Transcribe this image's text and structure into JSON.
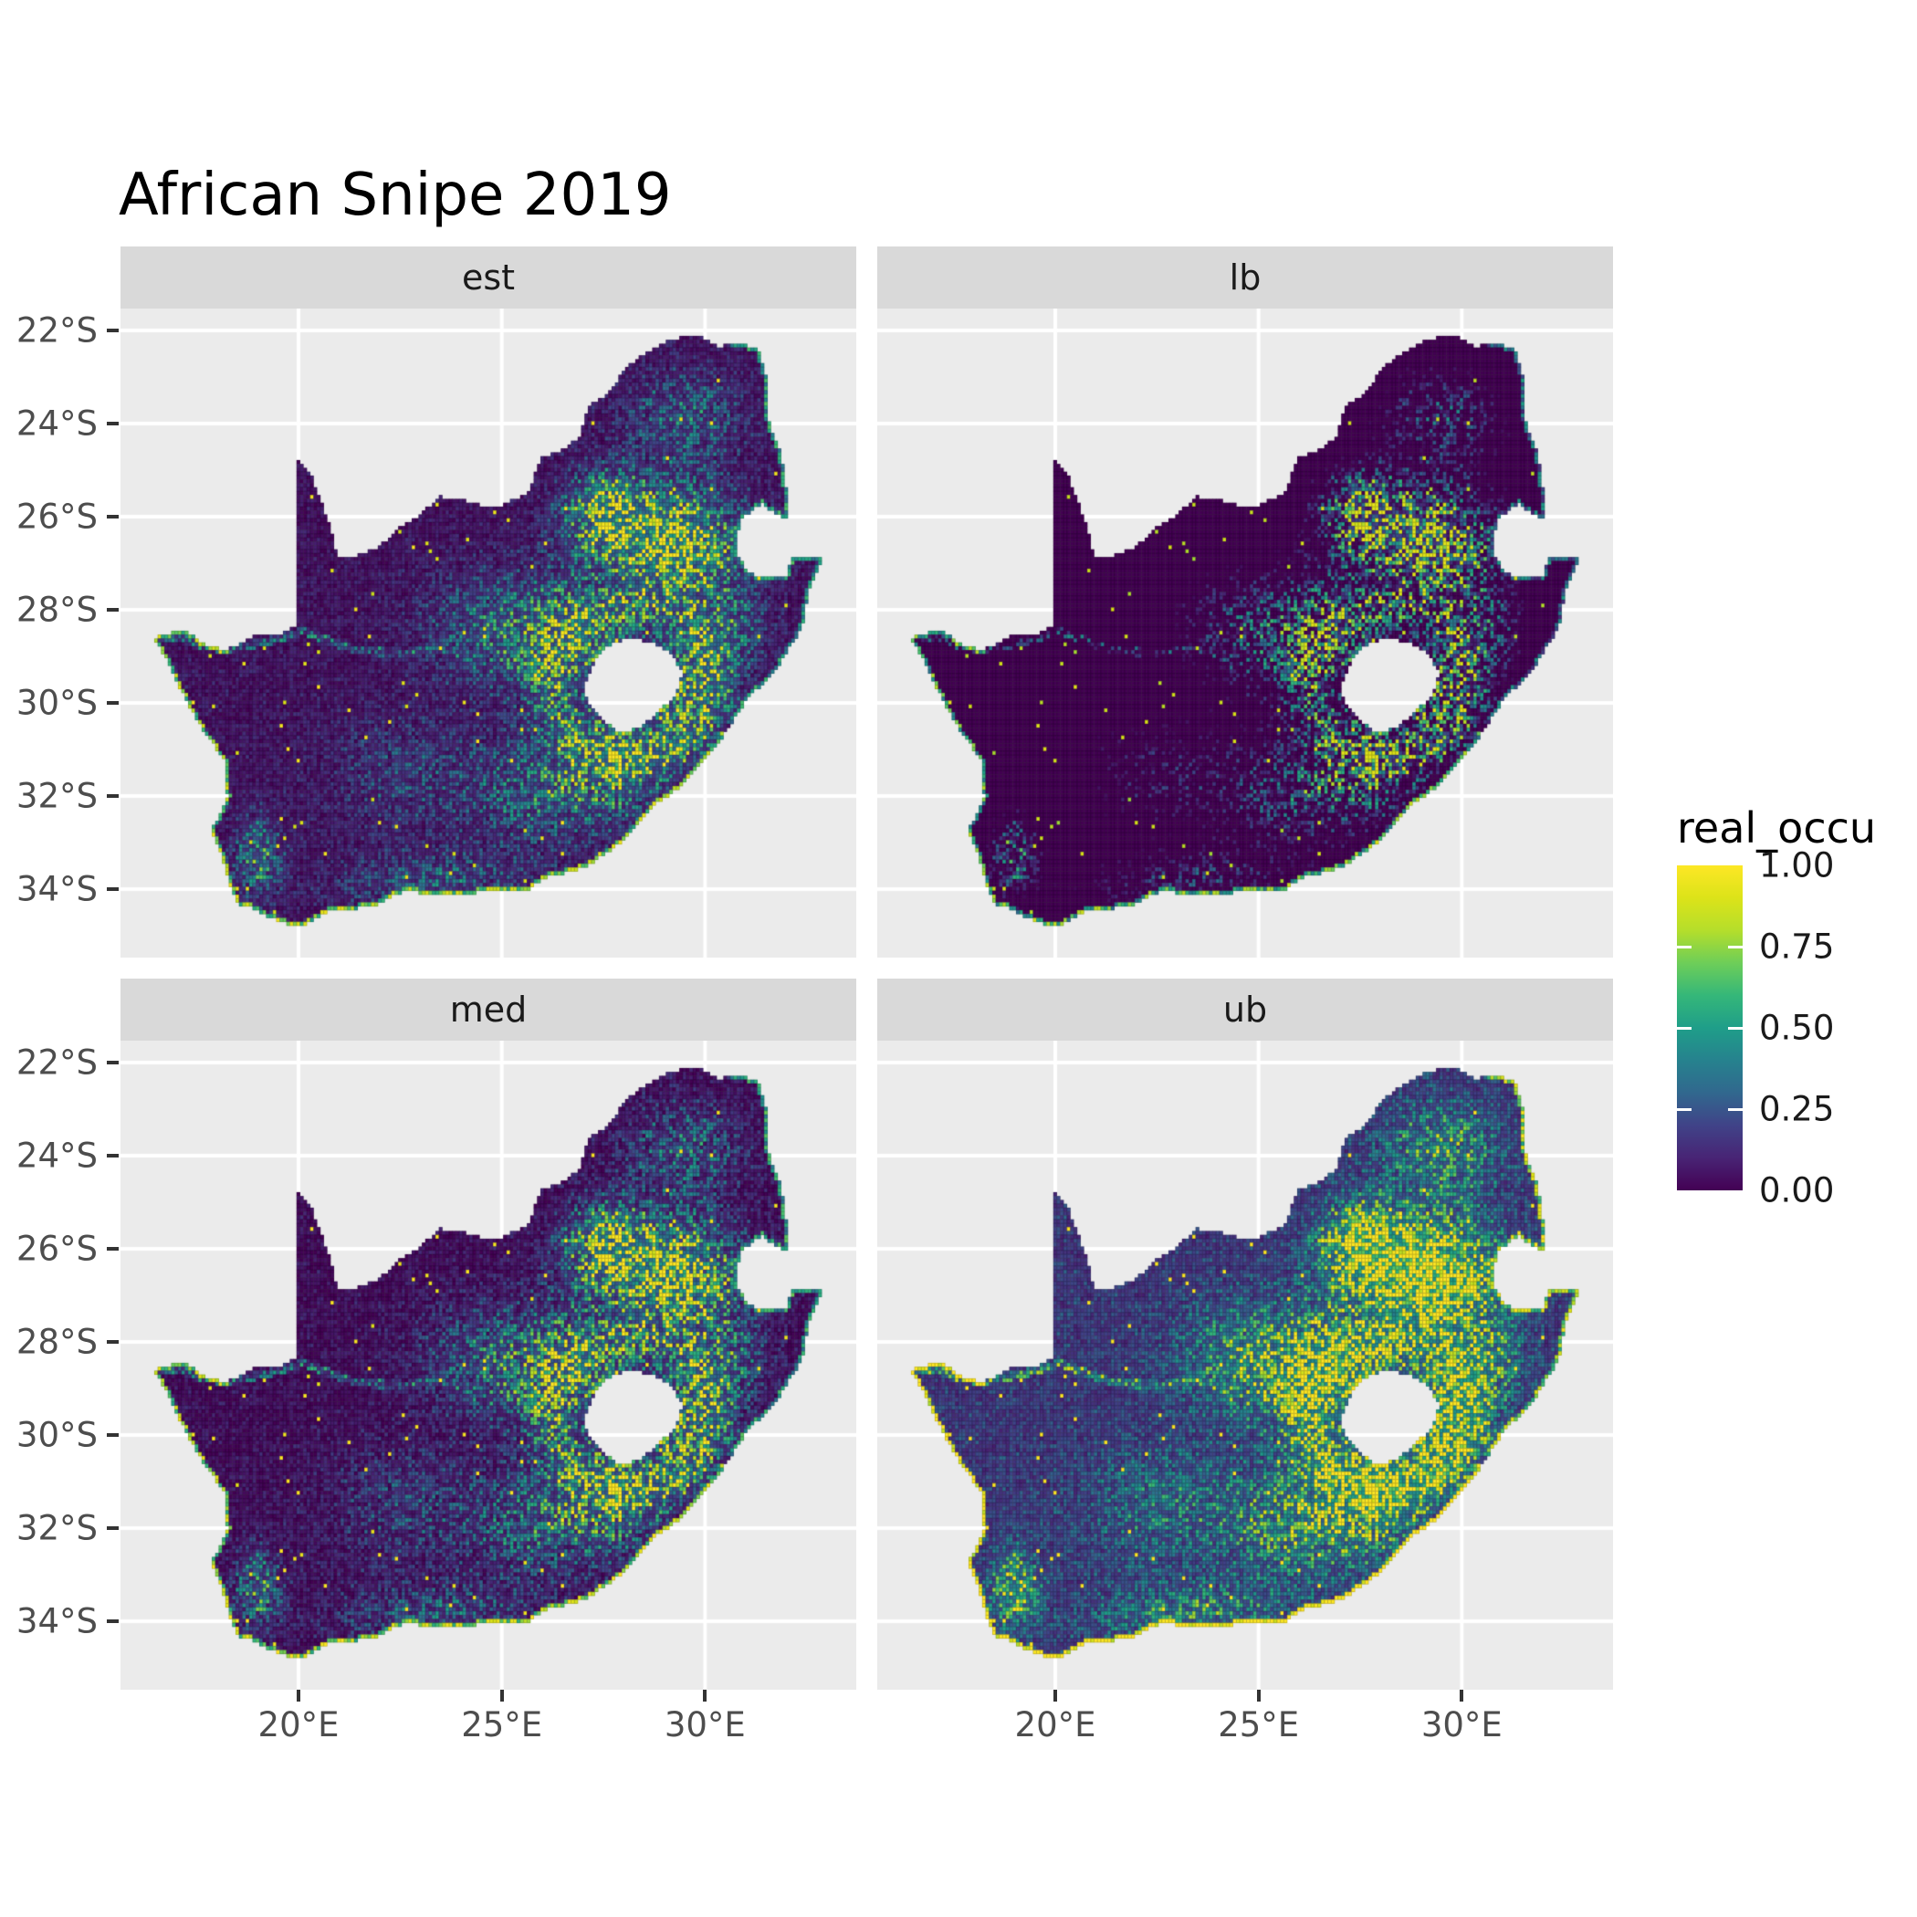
{
  "title": "African Snipe 2019",
  "facets": [
    {
      "label": "est"
    },
    {
      "label": "lb"
    },
    {
      "label": "med"
    },
    {
      "label": "ub"
    }
  ],
  "axes": {
    "y_tick_labels": [
      "22°S",
      "24°S",
      "26°S",
      "28°S",
      "30°S",
      "32°S",
      "34°S"
    ],
    "y_tick_degrees": [
      -22,
      -24,
      -26,
      -28,
      -30,
      -32,
      -34
    ],
    "x_tick_labels": [
      "20°E",
      "25°E",
      "30°E"
    ],
    "x_tick_degrees": [
      20,
      25,
      30
    ]
  },
  "legend": {
    "title": "real_occu",
    "tick_labels": [
      "1.00",
      "0.75",
      "0.50",
      "0.25",
      "0.00"
    ],
    "tick_values": [
      1.0,
      0.75,
      0.5,
      0.25,
      0.0
    ]
  },
  "colors": {
    "panel_bg": "#EBEBEB",
    "strip_bg": "#D9D9D9",
    "grid": "#FFFFFF",
    "axis_text": "#4D4D4D",
    "tick_mark": "#333333",
    "strip_text": "#1A1A1A",
    "title_text": "#000000",
    "legend_text": "#1A1A1A",
    "viridis": [
      "#440154",
      "#482475",
      "#404388",
      "#31688e",
      "#26828e",
      "#1f9e89",
      "#35b779",
      "#6ece58",
      "#b5de2b",
      "#dce319",
      "#fde725"
    ]
  },
  "chart_data": {
    "type": "heatmap",
    "subtype": "faceted-raster-map",
    "title": "African Snipe 2019",
    "facets": [
      "est",
      "lb",
      "med",
      "ub"
    ],
    "region": "South Africa (raster of occupancy pentads, Lesotho shown as hole)",
    "x_axis": {
      "ticks": [
        20,
        25,
        30
      ],
      "tick_labels": [
        "20°E",
        "25°E",
        "30°E"
      ],
      "extent": [
        15.62,
        33.73
      ]
    },
    "y_axis": {
      "ticks": [
        -22,
        -24,
        -26,
        -28,
        -30,
        -32,
        -34
      ],
      "tick_labels": [
        "22°S",
        "24°S",
        "26°S",
        "28°S",
        "30°S",
        "32°S",
        "34°S"
      ],
      "extent": [
        -35.47,
        -21.53
      ]
    },
    "legend": {
      "title": "real_occu",
      "range": [
        0,
        1
      ],
      "breaks": [
        0,
        0.25,
        0.5,
        0.75,
        1
      ],
      "palette": "viridis"
    },
    "grid": true,
    "cell_size_deg": 0.0833,
    "map": {
      "outline": [
        [
          16.45,
          -28.6
        ],
        [
          17.2,
          -28.4
        ],
        [
          17.6,
          -28.72
        ],
        [
          18.2,
          -28.88
        ],
        [
          19.0,
          -28.52
        ],
        [
          19.6,
          -28.5
        ],
        [
          19.99,
          -28.32
        ],
        [
          19.99,
          -24.77
        ],
        [
          20.3,
          -25.1
        ],
        [
          20.65,
          -25.9
        ],
        [
          20.9,
          -26.6
        ],
        [
          20.92,
          -26.88
        ],
        [
          21.4,
          -26.85
        ],
        [
          22.0,
          -26.63
        ],
        [
          22.6,
          -26.15
        ],
        [
          23.0,
          -25.95
        ],
        [
          23.45,
          -25.57
        ],
        [
          24.0,
          -25.63
        ],
        [
          24.45,
          -25.75
        ],
        [
          24.9,
          -25.8
        ],
        [
          25.4,
          -25.58
        ],
        [
          25.68,
          -25.45
        ],
        [
          25.95,
          -24.72
        ],
        [
          26.45,
          -24.6
        ],
        [
          26.9,
          -24.28
        ],
        [
          27.15,
          -23.6
        ],
        [
          27.6,
          -23.35
        ],
        [
          28.05,
          -22.8
        ],
        [
          28.4,
          -22.56
        ],
        [
          28.95,
          -22.28
        ],
        [
          29.4,
          -22.14
        ],
        [
          29.9,
          -22.13
        ],
        [
          30.3,
          -22.34
        ],
        [
          30.85,
          -22.29
        ],
        [
          31.3,
          -22.4
        ],
        [
          31.56,
          -23.2
        ],
        [
          31.56,
          -23.95
        ],
        [
          31.85,
          -24.6
        ],
        [
          31.98,
          -25.2
        ],
        [
          32.02,
          -25.65
        ],
        [
          32.06,
          -26.1
        ],
        [
          31.4,
          -25.73
        ],
        [
          30.95,
          -25.98
        ],
        [
          30.8,
          -26.3
        ],
        [
          30.8,
          -26.8
        ],
        [
          31.06,
          -27.2
        ],
        [
          31.5,
          -27.32
        ],
        [
          31.97,
          -27.31
        ],
        [
          32.13,
          -26.86
        ],
        [
          32.89,
          -26.86
        ],
        [
          32.55,
          -27.6
        ],
        [
          32.4,
          -28.35
        ],
        [
          31.7,
          -29.35
        ],
        [
          31.05,
          -29.9
        ],
        [
          30.25,
          -30.95
        ],
        [
          29.45,
          -31.75
        ],
        [
          28.6,
          -32.3
        ],
        [
          27.9,
          -33.03
        ],
        [
          27.0,
          -33.55
        ],
        [
          26.1,
          -33.75
        ],
        [
          25.65,
          -34.0
        ],
        [
          25.0,
          -34.0
        ],
        [
          24.2,
          -34.1
        ],
        [
          23.4,
          -34.1
        ],
        [
          22.55,
          -34.05
        ],
        [
          21.8,
          -34.4
        ],
        [
          20.9,
          -34.42
        ],
        [
          20.0,
          -34.82
        ],
        [
          19.3,
          -34.62
        ],
        [
          18.85,
          -34.4
        ],
        [
          18.47,
          -34.32
        ],
        [
          18.32,
          -33.92
        ],
        [
          18.05,
          -33.12
        ],
        [
          17.85,
          -32.75
        ],
        [
          18.25,
          -32.05
        ],
        [
          18.2,
          -31.25
        ],
        [
          17.55,
          -30.45
        ],
        [
          17.05,
          -29.65
        ],
        [
          16.8,
          -29.15
        ]
      ],
      "lesotho_hole": [
        [
          27.02,
          -29.62
        ],
        [
          27.35,
          -28.95
        ],
        [
          27.75,
          -28.68
        ],
        [
          28.25,
          -28.62
        ],
        [
          28.7,
          -28.72
        ],
        [
          29.1,
          -28.92
        ],
        [
          29.45,
          -29.3
        ],
        [
          29.3,
          -29.8
        ],
        [
          28.9,
          -30.15
        ],
        [
          28.35,
          -30.55
        ],
        [
          27.9,
          -30.62
        ],
        [
          27.45,
          -30.35
        ],
        [
          27.1,
          -29.95
        ]
      ],
      "rivers": [
        [
          [
            27.5,
            -30.25
          ],
          [
            26.6,
            -29.9
          ],
          [
            25.6,
            -29.55
          ],
          [
            24.4,
            -29.25
          ],
          [
            23.6,
            -28.85
          ],
          [
            22.5,
            -28.95
          ],
          [
            21.3,
            -28.85
          ],
          [
            20.1,
            -28.45
          ],
          [
            19.2,
            -28.7
          ],
          [
            18.1,
            -28.85
          ],
          [
            17.2,
            -28.65
          ],
          [
            16.5,
            -28.6
          ]
        ],
        [
          [
            29.5,
            -26.6
          ],
          [
            28.5,
            -26.95
          ],
          [
            27.4,
            -27.2
          ],
          [
            26.5,
            -27.5
          ],
          [
            25.6,
            -28.0
          ],
          [
            24.8,
            -28.45
          ],
          [
            24.1,
            -29.0
          ]
        ]
      ],
      "hotspots": [
        [
          29.2,
          -26.6,
          1.5,
          1.1,
          0.93
        ],
        [
          27.6,
          -25.9,
          1.0,
          0.85,
          0.65
        ],
        [
          26.6,
          -28.6,
          1.6,
          1.3,
          0.5
        ],
        [
          29.5,
          -29.9,
          0.9,
          0.9,
          0.5
        ],
        [
          27.9,
          -31.0,
          1.5,
          1.0,
          0.45
        ],
        [
          26.3,
          -31.9,
          2.2,
          1.1,
          0.32
        ],
        [
          30.3,
          -28.5,
          1.0,
          1.0,
          0.42
        ],
        [
          29.5,
          -23.9,
          1.4,
          1.0,
          0.28
        ],
        [
          19.0,
          -33.3,
          0.55,
          0.8,
          0.42
        ],
        [
          23.5,
          -33.9,
          2.5,
          0.7,
          0.22
        ],
        [
          24.5,
          -28.4,
          1.5,
          1.2,
          0.22
        ],
        [
          22.5,
          -31.5,
          1.8,
          1.2,
          0.15
        ]
      ],
      "hole_ring": {
        "center": [
          28.2,
          -29.6
        ],
        "rx": 1.45,
        "ry": 1.2,
        "boost": 0.3
      },
      "base_level": 0.07,
      "panel_transforms": {
        "est": {
          "gain": 1.0,
          "bias": 0.0
        },
        "lb": {
          "gain": 1.18,
          "bias": -0.26
        },
        "med": {
          "gain": 1.08,
          "bias": -0.02
        },
        "ub": {
          "gain": 1.38,
          "bias": 0.1
        }
      }
    }
  }
}
